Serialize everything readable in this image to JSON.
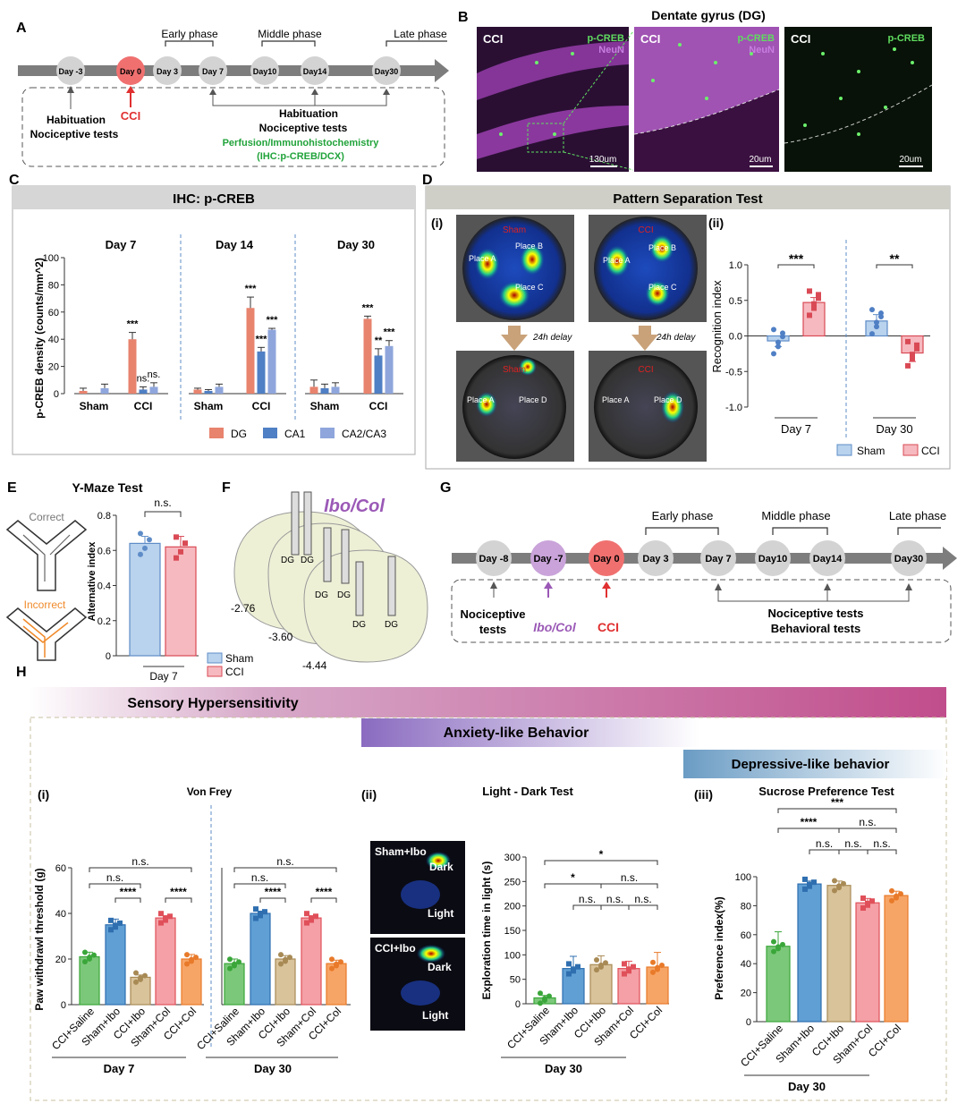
{
  "figure": {
    "panels": {
      "A": "A",
      "B": "B",
      "C": "C",
      "D": "D",
      "E": "E",
      "F": "F",
      "G": "G",
      "H": "H"
    }
  },
  "panelA": {
    "phases": [
      "Early phase",
      "Middle phase",
      "Late phase"
    ],
    "days": [
      "Day -3",
      "Day 0",
      "Day 3",
      "Day 7",
      "Day10",
      "Day14",
      "Day30"
    ],
    "below": {
      "habituation": "Habituation",
      "nociceptive": "Nociceptive tests",
      "cci": "CCI",
      "habituation2": "Habituation",
      "nociceptive2": "Nociceptive tests",
      "perfusion": "Perfusion/Immunohistochemistry",
      "ihc": "(IHC:p-CREB/DCX)"
    }
  },
  "panelB": {
    "title": "Dentate gyrus (DG)",
    "images": [
      {
        "group": "CCI",
        "stain1": "p-CREB",
        "stain2": "NeuN",
        "scale": "130um"
      },
      {
        "group": "CCI",
        "stain1": "p-CREB",
        "stain2": "NeuN",
        "scale": "20um"
      },
      {
        "group": "CCI",
        "stain1": "p-CREB",
        "stain2": "",
        "scale": "20um"
      }
    ]
  },
  "colors": {
    "dg": "#e8836e",
    "ca1": "#4f7fc4",
    "ca23": "#8fa6dc",
    "sham": "#b9d3ee",
    "cci": "#f6b9bf",
    "green": "#7cc87a",
    "blue": "#5f9fd4",
    "tan": "#d9c39b",
    "pink": "#f4a0a6",
    "orange": "#f7a566"
  },
  "panelC": {
    "header": "IHC: p-CREB",
    "ylabel": "p-CREB density (counts/mm^2)",
    "legend": [
      "DG",
      "CA1",
      "CA2/CA3"
    ],
    "groups": [
      "Sham",
      "CCI"
    ]
  },
  "panelD": {
    "header": "Pattern Separation Test",
    "sub_i": "(i)",
    "sub_ii": "(ii)",
    "places": {
      "a": "Place A",
      "b": "Place B",
      "c": "Place C",
      "d": "Place D"
    },
    "maps": {
      "sham": "Sham",
      "cci": "CCI"
    },
    "delay": "24h delay",
    "ylabel": "Recognition index",
    "days": [
      "Day 7",
      "Day 30"
    ],
    "sig": [
      "***",
      "**"
    ],
    "legend": [
      "Sham",
      "CCI"
    ]
  },
  "panelE": {
    "title": "Y-Maze Test",
    "correct": "Correct",
    "incorrect": "Incorrect",
    "ylabel": "Alternative index",
    "xlabel": "Day 7",
    "sig": "n.s.",
    "legend": [
      "Sham",
      "CCI"
    ]
  },
  "panelF": {
    "title": "Ibo/Col",
    "sites": [
      "DG",
      "DG",
      "DG",
      "DG",
      "DG",
      "DG"
    ],
    "coords": [
      "-2.76",
      "-3.60",
      "-4.44"
    ]
  },
  "panelG": {
    "phases": [
      "Early phase",
      "Middle phase",
      "Late phase"
    ],
    "days": [
      "Day -8",
      "Day -7",
      "Day 0",
      "Day 3",
      "Day 7",
      "Day10",
      "Day14",
      "Day30"
    ],
    "below": {
      "noc1": "Nociceptive",
      "noc2": "tests",
      "ibo": "Ibo/Col",
      "cci": "CCI",
      "noc3": "Nociceptive tests",
      "beh": "Behavioral tests"
    }
  },
  "panelH": {
    "bands": [
      "Sensory Hypersensitivity",
      "Anxiety-like Behavior",
      "Depressive-like behavior"
    ],
    "sub": [
      "(i)",
      "(ii)",
      "(iii)"
    ],
    "vf": {
      "title": "Von Frey",
      "ylabel": "Paw withdrawl threshold (g)",
      "days": [
        "Day 7",
        "Day 30"
      ]
    },
    "ld": {
      "title": "Light - Dark Test",
      "ylabel": "Exploration time in light (s)",
      "day": "Day 30",
      "maps": [
        {
          "label": "Sham+Ibo",
          "dark": "Dark",
          "light": "Light"
        },
        {
          "label": "CCI+Ibo",
          "dark": "Dark",
          "light": "Light"
        }
      ]
    },
    "sp": {
      "title": "Sucrose Preference Test",
      "ylabel": "Preference index(%)",
      "day": "Day 30"
    }
  },
  "chart_data": [
    {
      "id": "C",
      "type": "bar",
      "title": "IHC: p-CREB",
      "ylabel": "p-CREB density (counts/mm^2)",
      "ylim": [
        0,
        100
      ],
      "yticks": [
        0,
        20,
        40,
        60,
        80,
        100
      ],
      "panels": [
        {
          "day": "Day 7",
          "groups": [
            "Sham",
            "CCI"
          ],
          "series": [
            {
              "name": "DG",
              "values": [
                2,
                40
              ],
              "err": [
                2,
                5
              ]
            },
            {
              "name": "CA1",
              "values": [
                0,
                3
              ],
              "err": [
                0,
                2
              ]
            },
            {
              "name": "CA2/CA3",
              "values": [
                4,
                5
              ],
              "err": [
                3,
                3
              ]
            }
          ],
          "sig": [
            [
              "***",
              "ns.",
              "ns."
            ]
          ]
        },
        {
          "day": "Day 14",
          "groups": [
            "Sham",
            "CCI"
          ],
          "series": [
            {
              "name": "DG",
              "values": [
                3,
                63
              ],
              "err": [
                1,
                8
              ]
            },
            {
              "name": "CA1",
              "values": [
                2,
                31
              ],
              "err": [
                1,
                3
              ]
            },
            {
              "name": "CA2/CA3",
              "values": [
                5,
                47
              ],
              "err": [
                2,
                1
              ]
            }
          ],
          "sig": [
            [
              "***",
              "***",
              "***"
            ]
          ]
        },
        {
          "day": "Day 30",
          "groups": [
            "Sham",
            "CCI"
          ],
          "series": [
            {
              "name": "DG",
              "values": [
                5,
                55
              ],
              "err": [
                5,
                2
              ]
            },
            {
              "name": "CA1",
              "values": [
                4,
                28
              ],
              "err": [
                3,
                5
              ]
            },
            {
              "name": "CA2/CA3",
              "values": [
                5,
                35
              ],
              "err": [
                3,
                4
              ]
            }
          ],
          "sig": [
            [
              "***",
              "**",
              "***"
            ]
          ]
        }
      ]
    },
    {
      "id": "D-ii",
      "type": "bar",
      "ylabel": "Recognition index",
      "ylim": [
        -1,
        1
      ],
      "yticks": [
        -1.0,
        -0.5,
        0.0,
        0.5,
        1.0
      ],
      "days": [
        "Day 7",
        "Day 30"
      ],
      "series": [
        {
          "name": "Sham",
          "values": [
            -0.07,
            0.21
          ],
          "err": [
            0.08,
            0.09
          ]
        },
        {
          "name": "CCI",
          "values": [
            0.47,
            -0.24
          ],
          "err": [
            0.07,
            0.12
          ]
        }
      ],
      "sig": [
        "***",
        "**"
      ]
    },
    {
      "id": "E",
      "type": "bar",
      "ylabel": "Alternative index",
      "ylim": [
        0,
        0.8
      ],
      "yticks": [
        0,
        0.2,
        0.4,
        0.6,
        0.8
      ],
      "categories": [
        "Sham",
        "CCI"
      ],
      "values": [
        0.64,
        0.62
      ],
      "err": [
        0.04,
        0.06
      ],
      "sig": "n.s.",
      "xlabel": "Day 7"
    },
    {
      "id": "H-i",
      "type": "bar",
      "title": "Von Frey",
      "ylabel": "Paw withdrawl threshold (g)",
      "ylim": [
        0,
        60
      ],
      "yticks": [
        0,
        20,
        40,
        60
      ],
      "categories": [
        "CCI+Saline",
        "Sham+Ibo",
        "CCI+Ibo",
        "Sham+Col",
        "CCI+Col"
      ],
      "day7": [
        21,
        35,
        12,
        38,
        20
      ],
      "day7_err": [
        2,
        2.5,
        1,
        1,
        2
      ],
      "day30": [
        18,
        40,
        20,
        38,
        18
      ],
      "day30_err": [
        2,
        1,
        1.5,
        1,
        1.5
      ],
      "sig_day7": [
        "n.s.",
        "n.s.",
        "****",
        "****"
      ],
      "sig_day30": [
        "n.s.",
        "n.s.",
        "****",
        "****"
      ]
    },
    {
      "id": "H-ii",
      "type": "bar",
      "title": "Light - Dark Test",
      "ylabel": "Exploration time in light (s)",
      "ylim": [
        0,
        300
      ],
      "yticks": [
        0,
        50,
        100,
        150,
        200,
        250,
        300
      ],
      "categories": [
        "CCI+Saline",
        "Sham+Ibo",
        "CCI+Ibo",
        "Sham+Col",
        "CCI+Col"
      ],
      "values": [
        12,
        72,
        80,
        72,
        75
      ],
      "err": [
        5,
        25,
        18,
        15,
        30
      ],
      "sig": [
        "*",
        "*",
        "n.s.",
        "n.s.",
        "n.s.",
        "n.s."
      ]
    },
    {
      "id": "H-iii",
      "type": "bar",
      "title": "Sucrose Preference Test",
      "ylabel": "Preference index(%)",
      "ylim": [
        0,
        100
      ],
      "yticks": [
        0,
        20,
        40,
        60,
        80,
        100
      ],
      "categories": [
        "CCI+Saline",
        "Sham+Ibo",
        "CCI+Ibo",
        "Sham+Col",
        "CCI+Col"
      ],
      "values": [
        52,
        95,
        94,
        82,
        87
      ],
      "err": [
        10,
        2,
        3,
        3,
        3
      ],
      "sig": [
        "***",
        "****",
        "n.s.",
        "n.s.",
        "n.s.",
        "n.s."
      ]
    }
  ]
}
